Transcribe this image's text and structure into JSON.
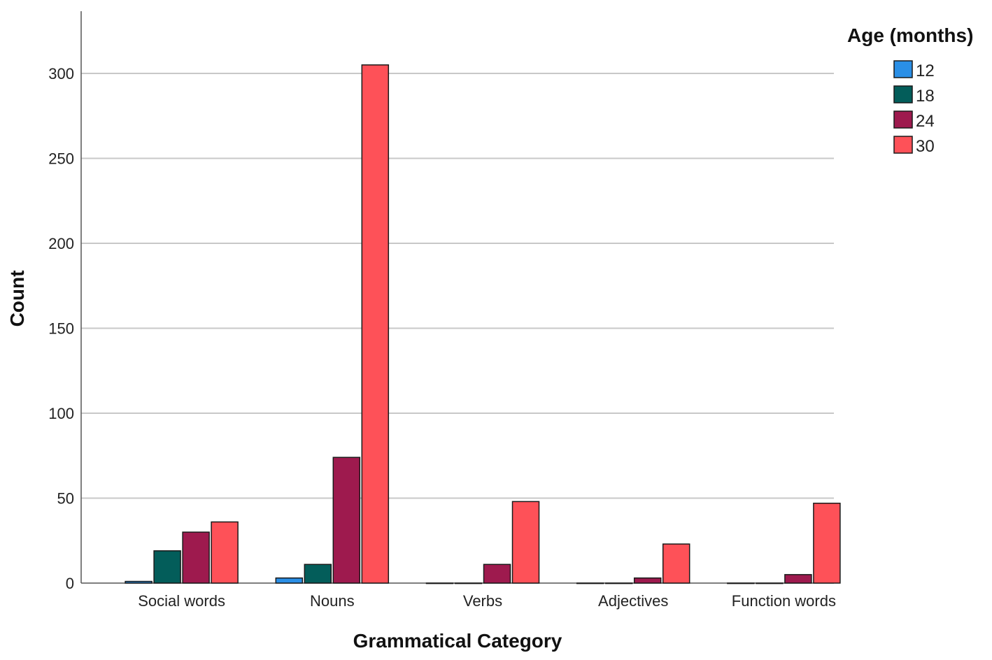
{
  "chart_data": {
    "type": "bar",
    "xlabel": "Grammatical Category",
    "ylabel": "Count",
    "legend_title": "Age (months)",
    "legend_position": "top-right",
    "grid": true,
    "ylim": [
      0,
      335
    ],
    "yticks": [
      0,
      50,
      100,
      150,
      200,
      250,
      300
    ],
    "categories": [
      "Social words",
      "Nouns",
      "Verbs",
      "Adjectives",
      "Function words"
    ],
    "series": [
      {
        "name": "12",
        "color": "#2a8fe6",
        "values": [
          1,
          3,
          0,
          0,
          0
        ]
      },
      {
        "name": "18",
        "color": "#035d5a",
        "values": [
          19,
          11,
          0,
          0,
          0
        ]
      },
      {
        "name": "24",
        "color": "#9e1a4e",
        "values": [
          30,
          74,
          11,
          3,
          5
        ]
      },
      {
        "name": "30",
        "color": "#fe5158",
        "values": [
          36,
          305,
          48,
          23,
          47
        ]
      }
    ]
  }
}
